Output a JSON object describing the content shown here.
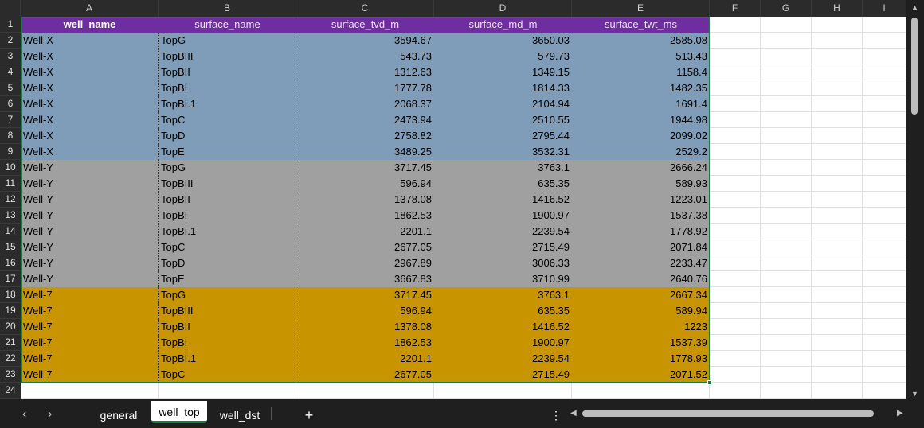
{
  "columns": [
    "A",
    "B",
    "C",
    "D",
    "E",
    "F",
    "G",
    "H",
    "I"
  ],
  "headers": [
    "well_name",
    "surface_name",
    "surface_tvd_m",
    "surface_md_m",
    "surface_twt_ms"
  ],
  "row_numbers": [
    "1",
    "2",
    "3",
    "4",
    "5",
    "6",
    "7",
    "8",
    "9",
    "10",
    "11",
    "12",
    "13",
    "14",
    "15",
    "16",
    "17",
    "18",
    "19",
    "20",
    "21",
    "22",
    "23",
    "24"
  ],
  "colors": {
    "header": "#6f2ea0",
    "well_x": "#7f9db8",
    "well_y": "#a0a0a0",
    "well_7": "#c89400"
  },
  "rows": [
    {
      "well": "Well-X",
      "surface": "TopG",
      "tvd": "3594.67",
      "md": "3650.03",
      "twt": "2585.08",
      "group": "well_x"
    },
    {
      "well": "Well-X",
      "surface": "TopBIII",
      "tvd": "543.73",
      "md": "579.73",
      "twt": "513.43",
      "group": "well_x"
    },
    {
      "well": "Well-X",
      "surface": "TopBII",
      "tvd": "1312.63",
      "md": "1349.15",
      "twt": "1158.4",
      "group": "well_x"
    },
    {
      "well": "Well-X",
      "surface": "TopBI",
      "tvd": "1777.78",
      "md": "1814.33",
      "twt": "1482.35",
      "group": "well_x"
    },
    {
      "well": "Well-X",
      "surface": "TopBI.1",
      "tvd": "2068.37",
      "md": "2104.94",
      "twt": "1691.4",
      "group": "well_x"
    },
    {
      "well": "Well-X",
      "surface": "TopC",
      "tvd": "2473.94",
      "md": "2510.55",
      "twt": "1944.98",
      "group": "well_x"
    },
    {
      "well": "Well-X",
      "surface": "TopD",
      "tvd": "2758.82",
      "md": "2795.44",
      "twt": "2099.02",
      "group": "well_x"
    },
    {
      "well": "Well-X",
      "surface": "TopE",
      "tvd": "3489.25",
      "md": "3532.31",
      "twt": "2529.2",
      "group": "well_x"
    },
    {
      "well": "Well-Y",
      "surface": "TopG",
      "tvd": "3717.45",
      "md": "3763.1",
      "twt": "2666.24",
      "group": "well_y"
    },
    {
      "well": "Well-Y",
      "surface": "TopBIII",
      "tvd": "596.94",
      "md": "635.35",
      "twt": "589.93",
      "group": "well_y"
    },
    {
      "well": "Well-Y",
      "surface": "TopBII",
      "tvd": "1378.08",
      "md": "1416.52",
      "twt": "1223.01",
      "group": "well_y"
    },
    {
      "well": "Well-Y",
      "surface": "TopBI",
      "tvd": "1862.53",
      "md": "1900.97",
      "twt": "1537.38",
      "group": "well_y"
    },
    {
      "well": "Well-Y",
      "surface": "TopBI.1",
      "tvd": "2201.1",
      "md": "2239.54",
      "twt": "1778.92",
      "group": "well_y"
    },
    {
      "well": "Well-Y",
      "surface": "TopC",
      "tvd": "2677.05",
      "md": "2715.49",
      "twt": "2071.84",
      "group": "well_y"
    },
    {
      "well": "Well-Y",
      "surface": "TopD",
      "tvd": "2967.89",
      "md": "3006.33",
      "twt": "2233.47",
      "group": "well_y"
    },
    {
      "well": "Well-Y",
      "surface": "TopE",
      "tvd": "3667.83",
      "md": "3710.99",
      "twt": "2640.76",
      "group": "well_y"
    },
    {
      "well": "Well-7",
      "surface": "TopG",
      "tvd": "3717.45",
      "md": "3763.1",
      "twt": "2667.34",
      "group": "well_7"
    },
    {
      "well": "Well-7",
      "surface": "TopBIII",
      "tvd": "596.94",
      "md": "635.35",
      "twt": "589.94",
      "group": "well_7"
    },
    {
      "well": "Well-7",
      "surface": "TopBII",
      "tvd": "1378.08",
      "md": "1416.52",
      "twt": "1223",
      "group": "well_7"
    },
    {
      "well": "Well-7",
      "surface": "TopBI",
      "tvd": "1862.53",
      "md": "1900.97",
      "twt": "1537.39",
      "group": "well_7"
    },
    {
      "well": "Well-7",
      "surface": "TopBI.1",
      "tvd": "2201.1",
      "md": "2239.54",
      "twt": "1778.93",
      "group": "well_7"
    },
    {
      "well": "Well-7",
      "surface": "TopC",
      "tvd": "2677.05",
      "md": "2715.49",
      "twt": "2071.52",
      "group": "well_7"
    }
  ],
  "sheet_tabs": [
    {
      "label": "general",
      "active": false
    },
    {
      "label": "well_top",
      "active": true
    },
    {
      "label": "well_dst",
      "active": false
    }
  ],
  "add_sheet_label": "+",
  "more_label": "⋮",
  "icons": {
    "prev": "chevron-left-icon",
    "next": "chevron-right-icon"
  }
}
